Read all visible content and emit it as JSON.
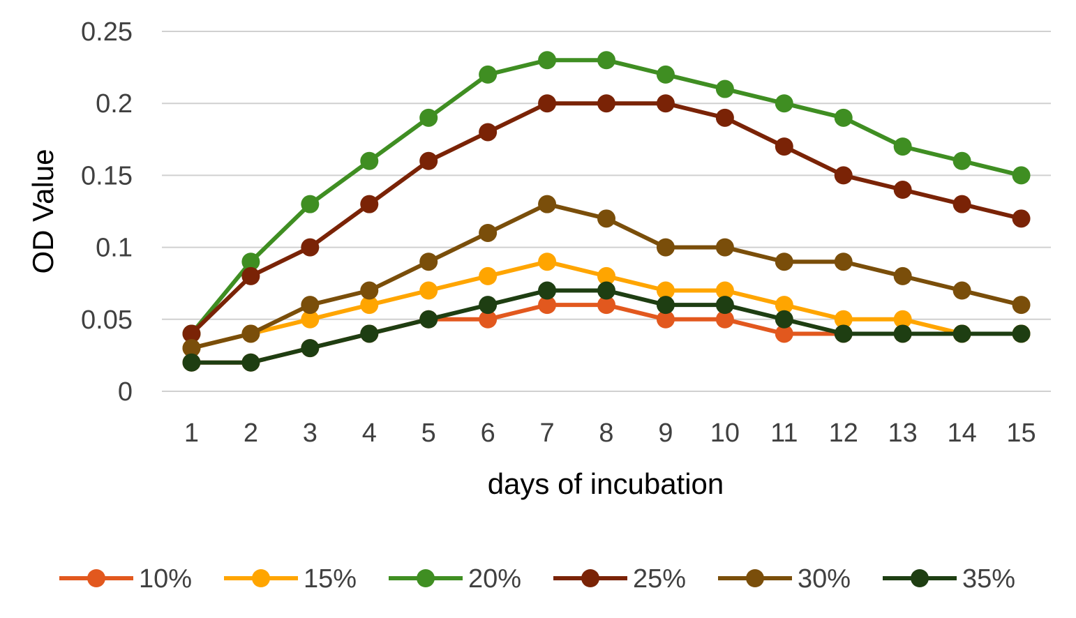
{
  "chart_data": {
    "type": "line",
    "title": "",
    "xlabel": "days of incubation",
    "ylabel": "OD Value",
    "categories": [
      "1",
      "2",
      "3",
      "4",
      "5",
      "6",
      "7",
      "8",
      "9",
      "10",
      "11",
      "12",
      "13",
      "14",
      "15"
    ],
    "ylim": [
      0,
      0.25
    ],
    "yticks": [
      "0",
      "0.05",
      "0.1",
      "0.15",
      "0.2",
      "0.25"
    ],
    "grid": true,
    "legend_position": "bottom",
    "series": [
      {
        "name": "10%",
        "color": "#E2581E",
        "values": [
          0.02,
          0.02,
          0.03,
          0.04,
          0.05,
          0.05,
          0.06,
          0.06,
          0.05,
          0.05,
          0.04,
          0.04,
          0.04,
          0.04,
          0.04
        ]
      },
      {
        "name": "15%",
        "color": "#FFA500",
        "values": [
          0.03,
          0.04,
          0.05,
          0.06,
          0.07,
          0.08,
          0.09,
          0.08,
          0.07,
          0.07,
          0.06,
          0.05,
          0.05,
          0.04,
          0.04
        ]
      },
      {
        "name": "20%",
        "color": "#3F8E22",
        "values": [
          0.04,
          0.09,
          0.13,
          0.16,
          0.19,
          0.22,
          0.23,
          0.23,
          0.22,
          0.21,
          0.2,
          0.19,
          0.17,
          0.16,
          0.15
        ]
      },
      {
        "name": "25%",
        "color": "#7A2306",
        "values": [
          0.04,
          0.08,
          0.1,
          0.13,
          0.16,
          0.18,
          0.2,
          0.2,
          0.2,
          0.19,
          0.17,
          0.15,
          0.14,
          0.13,
          0.12
        ]
      },
      {
        "name": "30%",
        "color": "#7A4E0A",
        "values": [
          0.03,
          0.04,
          0.06,
          0.07,
          0.09,
          0.11,
          0.13,
          0.12,
          0.1,
          0.1,
          0.09,
          0.09,
          0.08,
          0.07,
          0.06
        ]
      },
      {
        "name": "35%",
        "color": "#1E3E12",
        "values": [
          0.02,
          0.02,
          0.03,
          0.04,
          0.05,
          0.06,
          0.07,
          0.07,
          0.06,
          0.06,
          0.05,
          0.04,
          0.04,
          0.04,
          0.04
        ]
      }
    ]
  }
}
